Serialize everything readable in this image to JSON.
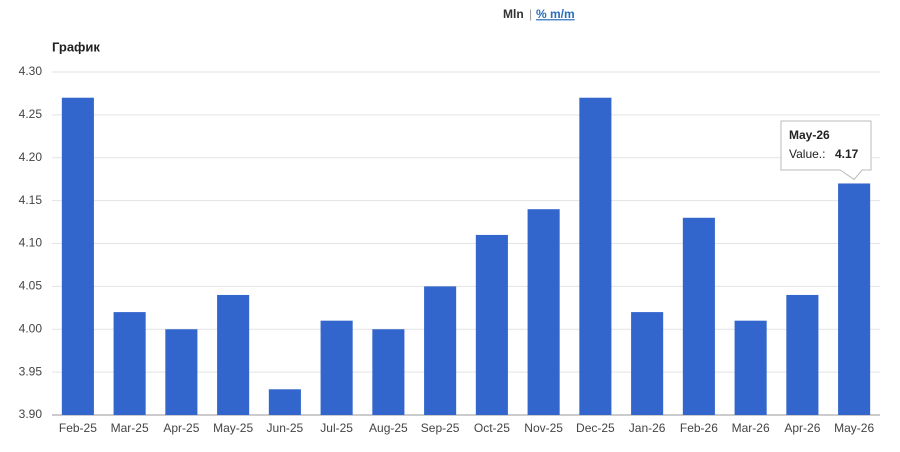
{
  "chart_data": {
    "type": "bar",
    "title": "График",
    "units": [
      "Mln",
      "% m/m"
    ],
    "unit_separator": "|",
    "categories": [
      "Feb-25",
      "Mar-25",
      "Apr-25",
      "May-25",
      "Jun-25",
      "Jul-25",
      "Aug-25",
      "Sep-25",
      "Oct-25",
      "Nov-25",
      "Dec-25",
      "Jan-26",
      "Feb-26",
      "Mar-26",
      "Apr-26",
      "May-26"
    ],
    "values": [
      4.27,
      4.02,
      4.0,
      4.04,
      3.93,
      4.01,
      4.0,
      4.05,
      4.11,
      4.14,
      4.27,
      4.02,
      4.13,
      4.01,
      4.04,
      4.17
    ],
    "color": "#3366cc",
    "ylim": [
      3.9,
      4.3
    ],
    "yticks": [
      {
        "value": 3.9,
        "label": "3.90"
      },
      {
        "value": 3.95,
        "label": "3.95"
      },
      {
        "value": 4.0,
        "label": "4.00"
      },
      {
        "value": 4.05,
        "label": "4.05"
      },
      {
        "value": 4.1,
        "label": "4.10"
      },
      {
        "value": 4.15,
        "label": "4.15"
      },
      {
        "value": 4.2,
        "label": "4.20"
      },
      {
        "value": 4.25,
        "label": "4.25"
      },
      {
        "value": 4.3,
        "label": "4.30"
      }
    ],
    "grid": true,
    "tooltip_label": "Value.:"
  }
}
